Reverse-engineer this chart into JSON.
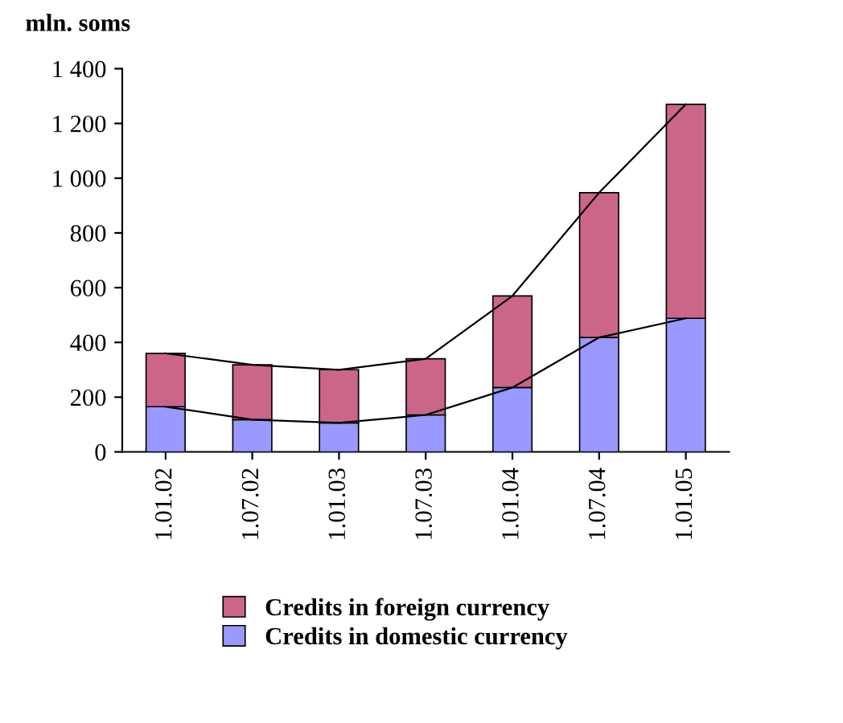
{
  "chart_data": {
    "type": "bar",
    "stacked": true,
    "ylabel": "mln. soms",
    "categories": [
      "1.01.02",
      "1.07.02",
      "1.01.03",
      "1.07.03",
      "1.01.04",
      "1.07.04",
      "1.01.05"
    ],
    "series": [
      {
        "name": "Credits in domestic currency",
        "color": "#9999ff",
        "values": [
          165,
          118,
          106,
          135,
          235,
          418,
          488
        ]
      },
      {
        "name": "Credits in foreign currency",
        "color": "#cc6688",
        "values": [
          195,
          200,
          194,
          205,
          335,
          529,
          782
        ]
      },
      {
        "type": "line",
        "color": "#000000",
        "values": [
          165,
          118,
          106,
          135,
          235,
          418,
          488
        ]
      },
      {
        "type": "line",
        "color": "#000000",
        "values": [
          360,
          318,
          300,
          340,
          570,
          947,
          1270
        ]
      }
    ],
    "ylim": [
      0,
      1400
    ],
    "yticks": [
      0,
      200,
      400,
      600,
      800,
      {
        "value": 1000,
        "label": "1 000"
      },
      {
        "value": 1200,
        "label": "1 200"
      },
      {
        "value": 1400,
        "label": "1 400"
      }
    ],
    "grid": false,
    "legend": "bottom"
  }
}
